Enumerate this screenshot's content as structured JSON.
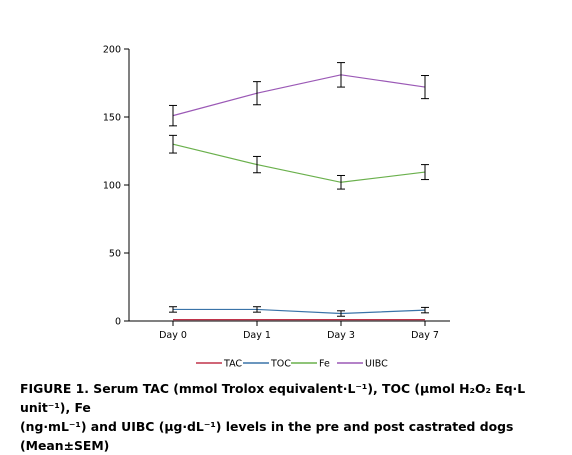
{
  "chart_data": {
    "type": "line",
    "categories": [
      "Day 0",
      "Day 1",
      "Day 3",
      "Day 7"
    ],
    "ylim": [
      0,
      200
    ],
    "yticks": [
      0,
      50,
      100,
      150,
      200
    ],
    "legend_position": "bottom",
    "grid": false,
    "series": [
      {
        "name": "TAC",
        "color": "#c0334a",
        "values": [
          1,
          1,
          1,
          1
        ],
        "errors": [
          0,
          0,
          0,
          0
        ]
      },
      {
        "name": "TOC",
        "color": "#3a73a8",
        "values": [
          8.5,
          8.5,
          5.5,
          8
        ],
        "errors": [
          2,
          2,
          2,
          2
        ]
      },
      {
        "name": "Fe",
        "color": "#6ab04c",
        "values": [
          130,
          115,
          102,
          109.5
        ],
        "errors": [
          6.5,
          6,
          5,
          5.5
        ]
      },
      {
        "name": "UIBC",
        "color": "#9b59b6",
        "values": [
          151,
          167.5,
          181,
          172
        ],
        "errors": [
          7.5,
          8.5,
          9,
          8.5
        ]
      }
    ]
  },
  "caption": {
    "line1": "FIGURE 1. Serum TAC (mmol Trolox equivalent·L⁻¹), TOC (µmol H₂O₂ Eq·L unit⁻¹), Fe",
    "line2": "(ng·mL⁻¹) and UIBC (µg·dL⁻¹) levels in the pre and post castrated dogs (Mean±SEM)"
  }
}
